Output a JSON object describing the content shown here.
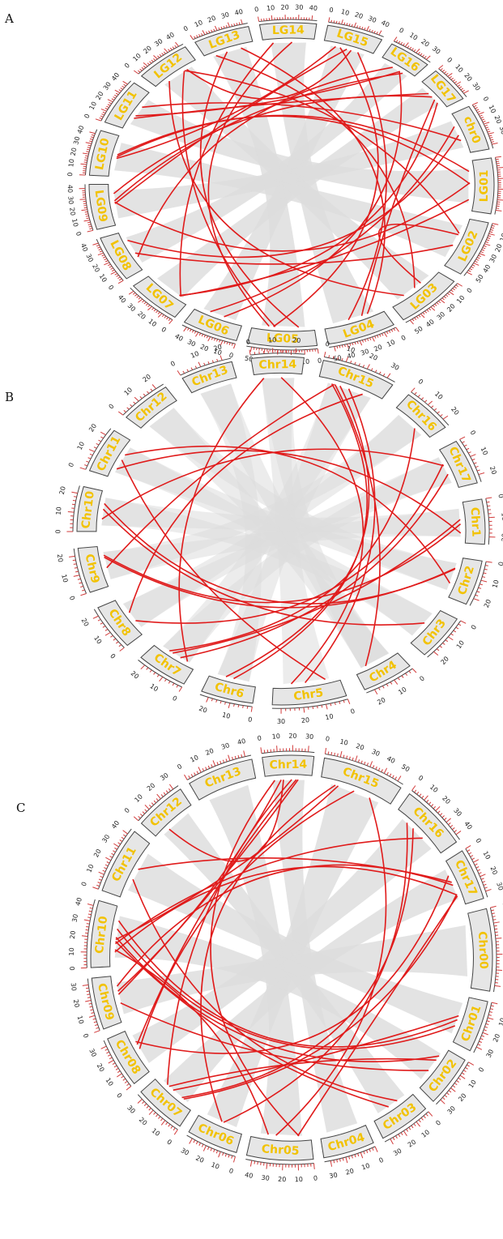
{
  "panels": [
    {
      "letter": "A",
      "chromosomes": [
        {
          "name": "LG14",
          "ticks": [
            0,
            10,
            20,
            30,
            40
          ]
        },
        {
          "name": "LG15",
          "ticks": [
            0,
            10,
            20,
            30,
            40
          ]
        },
        {
          "name": "LG16",
          "ticks": [
            0,
            10,
            20,
            30
          ]
        },
        {
          "name": "LG17",
          "ticks": [
            0,
            10,
            20,
            30
          ]
        },
        {
          "name": "chr0",
          "ticks": [
            0,
            10,
            20,
            30,
            40
          ]
        },
        {
          "name": "LG01",
          "ticks": [
            0,
            10,
            20,
            30,
            40,
            50
          ]
        },
        {
          "name": "LG02",
          "ticks": [
            0,
            10,
            20,
            30,
            40,
            50
          ]
        },
        {
          "name": "LG03",
          "ticks": [
            0,
            10,
            20,
            30,
            40,
            50
          ]
        },
        {
          "name": "LG04",
          "ticks": [
            0,
            10,
            20,
            30,
            40,
            50
          ]
        },
        {
          "name": "LG05",
          "ticks": [
            0,
            10,
            20,
            30,
            40,
            50
          ]
        },
        {
          "name": "LG06",
          "ticks": [
            0,
            10,
            20,
            30,
            40
          ]
        },
        {
          "name": "LG07",
          "ticks": [
            0,
            10,
            20,
            30,
            40
          ]
        },
        {
          "name": "LG08",
          "ticks": [
            0,
            10,
            20,
            30,
            40
          ]
        },
        {
          "name": "LG09",
          "ticks": [
            0,
            10,
            20,
            30,
            40
          ]
        },
        {
          "name": "LG10",
          "ticks": [
            0,
            10,
            20,
            30,
            40
          ]
        },
        {
          "name": "LG11",
          "ticks": [
            0,
            10,
            20,
            30,
            40
          ]
        },
        {
          "name": "LG12",
          "ticks": [
            0,
            10,
            20,
            30,
            40
          ]
        },
        {
          "name": "LG13",
          "ticks": [
            0,
            10,
            20,
            30,
            40
          ]
        }
      ],
      "links": [
        [
          0,
          11
        ],
        [
          0,
          9
        ],
        [
          1,
          9
        ],
        [
          1,
          8
        ],
        [
          1,
          13
        ],
        [
          1,
          14
        ],
        [
          2,
          15
        ],
        [
          2,
          12
        ],
        [
          3,
          11
        ],
        [
          3,
          13
        ],
        [
          4,
          10
        ],
        [
          4,
          15
        ],
        [
          5,
          13
        ],
        [
          5,
          14
        ],
        [
          6,
          12
        ],
        [
          6,
          7
        ],
        [
          7,
          16
        ],
        [
          7,
          17
        ],
        [
          8,
          17
        ],
        [
          9,
          16
        ],
        [
          10,
          2
        ],
        [
          12,
          4
        ],
        [
          14,
          5
        ],
        [
          15,
          3
        ],
        [
          16,
          6
        ],
        [
          17,
          9
        ],
        [
          11,
          5
        ],
        [
          13,
          2
        ],
        [
          8,
          3
        ],
        [
          16,
          1
        ]
      ]
    },
    {
      "letter": "B",
      "chromosomes": [
        {
          "name": "Chr14",
          "ticks": [
            0,
            10,
            20
          ]
        },
        {
          "name": "Chr15",
          "ticks": [
            0,
            10,
            20,
            30
          ]
        },
        {
          "name": "Chr16",
          "ticks": [
            0,
            10,
            20
          ]
        },
        {
          "name": "Chr17",
          "ticks": [
            0,
            10,
            20
          ]
        },
        {
          "name": "Chr1",
          "ticks": [
            0,
            10,
            20
          ]
        },
        {
          "name": "Chr2",
          "ticks": [
            0,
            10,
            20
          ]
        },
        {
          "name": "Chr3",
          "ticks": [
            0,
            10,
            20
          ]
        },
        {
          "name": "Chr4",
          "ticks": [
            0,
            10,
            20
          ]
        },
        {
          "name": "Chr5",
          "ticks": [
            0,
            10,
            20,
            30
          ]
        },
        {
          "name": "Chr6",
          "ticks": [
            0,
            10,
            20
          ]
        },
        {
          "name": "Chr7",
          "ticks": [
            0,
            10,
            20
          ]
        },
        {
          "name": "Chr8",
          "ticks": [
            0,
            10,
            20
          ]
        },
        {
          "name": "Chr9",
          "ticks": [
            0,
            10,
            20
          ]
        },
        {
          "name": "Chr10",
          "ticks": [
            0,
            10,
            20
          ]
        },
        {
          "name": "Chr11",
          "ticks": [
            0,
            10,
            20
          ]
        },
        {
          "name": "Chr12",
          "ticks": [
            0,
            10,
            20
          ]
        },
        {
          "name": "Chr13",
          "ticks": [
            0,
            10,
            20
          ]
        }
      ],
      "links": [
        [
          0,
          10
        ],
        [
          0,
          8
        ],
        [
          1,
          9
        ],
        [
          1,
          11
        ],
        [
          1,
          8
        ],
        [
          1,
          12
        ],
        [
          3,
          10
        ],
        [
          3,
          13
        ],
        [
          4,
          14
        ],
        [
          4,
          12
        ],
        [
          5,
          13
        ],
        [
          5,
          14
        ],
        [
          6,
          13
        ],
        [
          8,
          14
        ],
        [
          10,
          4
        ],
        [
          11,
          3
        ],
        [
          12,
          5
        ],
        [
          9,
          1
        ],
        [
          1,
          7
        ],
        [
          2,
          10
        ]
      ]
    },
    {
      "letter": "C",
      "chromosomes": [
        {
          "name": "Chr14",
          "ticks": [
            0,
            10,
            20,
            30
          ]
        },
        {
          "name": "Chr15",
          "ticks": [
            0,
            10,
            20,
            30,
            40,
            50
          ]
        },
        {
          "name": "Chr16",
          "ticks": [
            0,
            10,
            20,
            30,
            40
          ]
        },
        {
          "name": "Chr17",
          "ticks": [
            0,
            10,
            20,
            30
          ]
        },
        {
          "name": "Chr00",
          "ticks": [
            0,
            10,
            20,
            30,
            40,
            50
          ]
        },
        {
          "name": "Chr01",
          "ticks": [
            0,
            10,
            20,
            30
          ]
        },
        {
          "name": "Chr02",
          "ticks": [
            0,
            10,
            20,
            30
          ]
        },
        {
          "name": "Chr03",
          "ticks": [
            0,
            10,
            20,
            30
          ]
        },
        {
          "name": "Chr04",
          "ticks": [
            0,
            10,
            20,
            30
          ]
        },
        {
          "name": "Chr05",
          "ticks": [
            0,
            10,
            20,
            30,
            40
          ]
        },
        {
          "name": "Chr06",
          "ticks": [
            0,
            10,
            20,
            30
          ]
        },
        {
          "name": "Chr07",
          "ticks": [
            0,
            10,
            20,
            30
          ]
        },
        {
          "name": "Chr08",
          "ticks": [
            0,
            10,
            20,
            30
          ]
        },
        {
          "name": "Chr09",
          "ticks": [
            0,
            10,
            20,
            30
          ]
        },
        {
          "name": "Chr10",
          "ticks": [
            0,
            10,
            20,
            30,
            40
          ]
        },
        {
          "name": "Chr11",
          "ticks": [
            0,
            10,
            20,
            30,
            40
          ]
        },
        {
          "name": "Chr12",
          "ticks": [
            0,
            10,
            20,
            30
          ]
        },
        {
          "name": "Chr13",
          "ticks": [
            0,
            10,
            20,
            30,
            40
          ]
        }
      ],
      "links": [
        [
          0,
          9
        ],
        [
          0,
          11
        ],
        [
          0,
          13
        ],
        [
          1,
          9
        ],
        [
          1,
          12
        ],
        [
          1,
          14
        ],
        [
          2,
          14
        ],
        [
          2,
          11
        ],
        [
          3,
          14
        ],
        [
          3,
          13
        ],
        [
          3,
          12
        ],
        [
          5,
          14
        ],
        [
          5,
          11
        ],
        [
          6,
          14
        ],
        [
          7,
          14
        ],
        [
          7,
          15
        ],
        [
          9,
          14
        ],
        [
          10,
          1
        ],
        [
          11,
          3
        ],
        [
          12,
          0
        ],
        [
          13,
          6
        ],
        [
          14,
          5
        ],
        [
          15,
          3
        ],
        [
          16,
          0
        ],
        [
          11,
          6
        ],
        [
          10,
          2
        ],
        [
          9,
          3
        ],
        [
          13,
          0
        ]
      ]
    }
  ]
}
